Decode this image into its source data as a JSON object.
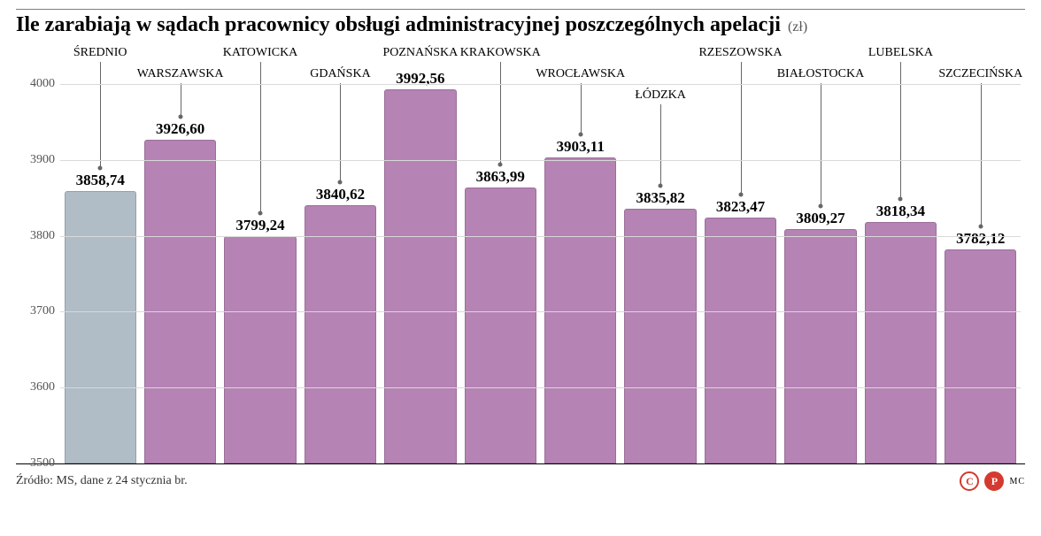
{
  "title": "Ile zarabiają w sądach pracownicy obsługi administracyjnej poszczególnych apelacji",
  "unit": "(zł)",
  "title_fontsize": 24,
  "unit_fontsize": 16,
  "unit_color": "#555555",
  "rule_color": "#7d7d7d",
  "chart": {
    "type": "bar",
    "background_color": "#ffffff",
    "ylim": [
      3500,
      4050
    ],
    "ytick_labels": [
      "3500",
      "3600",
      "3700",
      "3800",
      "3900",
      "4000"
    ],
    "ytick_values": [
      3500,
      3600,
      3700,
      3800,
      3900,
      4000
    ],
    "ytick_fontsize": 14,
    "ytick_color": "#555555",
    "gridline_color": "#d9d9d9",
    "baseline_color": "#000000",
    "bar_width_ratio": 0.9,
    "value_label_fontsize": 17,
    "category_label_fontsize": 14,
    "leader_color": "#666666",
    "bars": [
      {
        "category": "ŚREDNIO",
        "value": 3858.74,
        "value_label": "3858,74",
        "color": "#b0bcc6",
        "label_tier": 0
      },
      {
        "category": "WARSZAWSKA",
        "value": 3926.6,
        "value_label": "3926,60",
        "color": "#b583b4",
        "label_tier": 1
      },
      {
        "category": "KATOWICKA",
        "value": 3799.24,
        "value_label": "3799,24",
        "color": "#b583b4",
        "label_tier": 0
      },
      {
        "category": "GDAŃSKA",
        "value": 3840.62,
        "value_label": "3840,62",
        "color": "#b583b4",
        "label_tier": 1
      },
      {
        "category": "POZNAŃSKA",
        "value": 3992.56,
        "value_label": "3992,56",
        "color": "#b583b4",
        "label_tier": 0
      },
      {
        "category": "KRAKOWSKA",
        "value": 3863.99,
        "value_label": "3863,99",
        "color": "#b583b4",
        "label_tier": 0
      },
      {
        "category": "WROCŁAWSKA",
        "value": 3903.11,
        "value_label": "3903,11",
        "color": "#b583b4",
        "label_tier": 1
      },
      {
        "category": "ŁÓDZKA",
        "value": 3835.82,
        "value_label": "3835,82",
        "color": "#b583b4",
        "label_tier": 2
      },
      {
        "category": "RZESZOWSKA",
        "value": 3823.47,
        "value_label": "3823,47",
        "color": "#b583b4",
        "label_tier": 0
      },
      {
        "category": "BIAŁOSTOCKA",
        "value": 3809.27,
        "value_label": "3809,27",
        "color": "#b583b4",
        "label_tier": 1
      },
      {
        "category": "LUBELSKA",
        "value": 3818.34,
        "value_label": "3818,34",
        "color": "#b583b4",
        "label_tier": 0
      },
      {
        "category": "SZCZECIŃSKA",
        "value": 3782.12,
        "value_label": "3782,12",
        "color": "#b583b4",
        "label_tier": 1
      }
    ]
  },
  "footer": {
    "source": "Źródło: MS, dane z 24 stycznia br.",
    "source_fontsize": 14,
    "mark_c": "C",
    "mark_c_border": "#d43a2f",
    "mark_c_text": "#d43a2f",
    "mark_p": "P",
    "mark_p_border": "#d43a2f",
    "mark_p_bg": "#d43a2f",
    "mark_p_text": "#ffffff",
    "credit": "MC"
  }
}
